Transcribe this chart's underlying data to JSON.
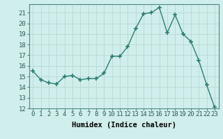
{
  "x": [
    0,
    1,
    2,
    3,
    4,
    5,
    6,
    7,
    8,
    9,
    10,
    11,
    12,
    13,
    14,
    15,
    16,
    17,
    18,
    19,
    20,
    21,
    22,
    23
  ],
  "y": [
    15.5,
    14.7,
    14.4,
    14.3,
    15.0,
    15.1,
    14.7,
    14.8,
    14.8,
    15.3,
    16.9,
    16.9,
    17.8,
    19.5,
    20.9,
    21.0,
    21.5,
    19.1,
    20.8,
    19.0,
    18.3,
    16.5,
    14.2,
    12.1
  ],
  "line_color": "#2e7d72",
  "marker": "+",
  "markersize": 4,
  "markeredgewidth": 1.2,
  "linewidth": 1.0,
  "bg_color": "#d0eeeb",
  "grid_color": "#b8d8d4",
  "xlabel": "Humidex (Indice chaleur)",
  "xlabel_fontsize": 7.5,
  "tick_fontsize": 6.5,
  "xlim": [
    -0.5,
    23.5
  ],
  "ylim": [
    12,
    21.8
  ],
  "yticks": [
    12,
    13,
    14,
    15,
    16,
    17,
    18,
    19,
    20,
    21
  ],
  "xticks": [
    0,
    1,
    2,
    3,
    4,
    5,
    6,
    7,
    8,
    9,
    10,
    11,
    12,
    13,
    14,
    15,
    16,
    17,
    18,
    19,
    20,
    21,
    22,
    23
  ]
}
